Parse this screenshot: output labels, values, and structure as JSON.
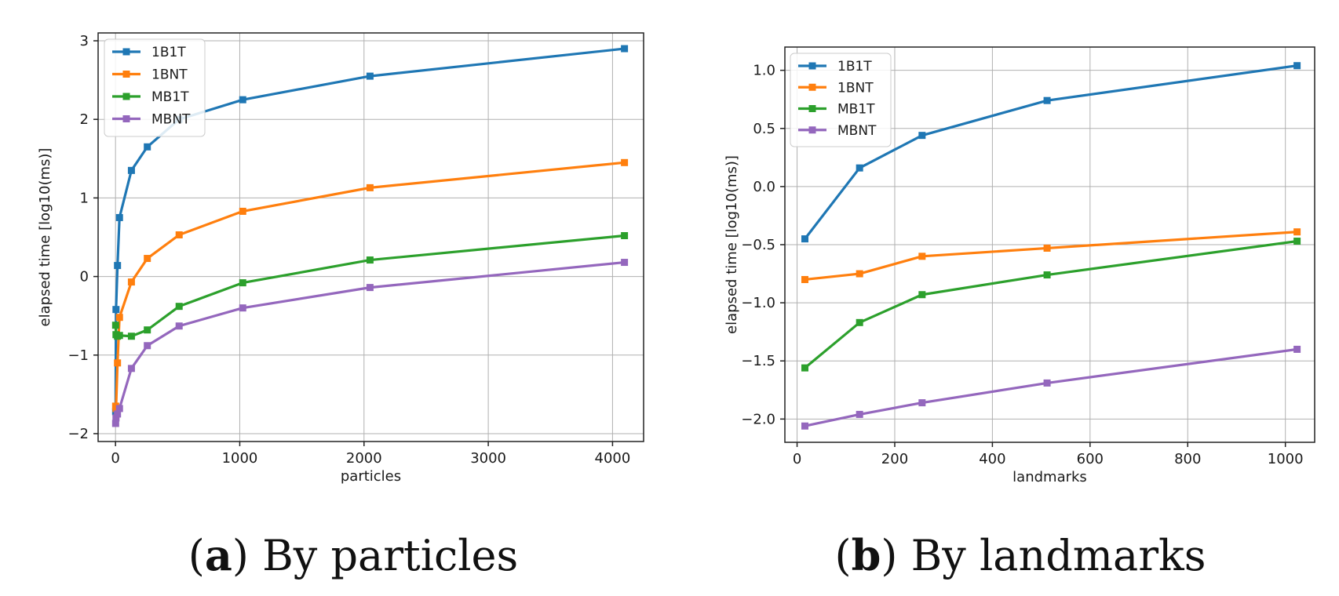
{
  "colors": {
    "1B1T": "#1f77b4",
    "1BNT": "#ff7f0e",
    "MB1T": "#2ca02c",
    "MBNT": "#9467bd"
  },
  "chart_data": [
    {
      "type": "line",
      "id": "a",
      "caption_letter": "a",
      "caption_text": " By particles",
      "xlabel": "particles",
      "ylabel": "elapsed time [log10(ms)]",
      "xlim": [
        -140,
        4250
      ],
      "ylim": [
        -2.1,
        3.1
      ],
      "xticks": [
        0,
        1000,
        2000,
        3000,
        4000
      ],
      "xtick_labels": [
        "0",
        "1000",
        "2000",
        "3000",
        "4000"
      ],
      "yticks": [
        -2,
        -1,
        0,
        1,
        2,
        3
      ],
      "ytick_labels": [
        "−2",
        "−1",
        "0",
        "1",
        "2",
        "3"
      ],
      "grid": true,
      "legend_position": "top-left",
      "series": [
        {
          "name": "1B1T",
          "x": [
            1,
            4,
            16,
            32,
            128,
            256,
            512,
            1024,
            2048,
            4096
          ],
          "y": [
            -1.72,
            -0.42,
            0.14,
            0.75,
            1.35,
            1.65,
            2.0,
            2.25,
            2.55,
            2.9
          ]
        },
        {
          "name": "1BNT",
          "x": [
            1,
            4,
            16,
            32,
            128,
            256,
            512,
            1024,
            2048,
            4096
          ],
          "y": [
            -1.65,
            -1.68,
            -1.1,
            -0.52,
            -0.07,
            0.23,
            0.53,
            0.83,
            1.13,
            1.45
          ]
        },
        {
          "name": "MB1T",
          "x": [
            1,
            4,
            16,
            32,
            128,
            256,
            512,
            1024,
            2048,
            4096
          ],
          "y": [
            -0.62,
            -0.74,
            -0.76,
            -0.75,
            -0.76,
            -0.68,
            -0.38,
            -0.08,
            0.21,
            0.52
          ]
        },
        {
          "name": "MBNT",
          "x": [
            1,
            4,
            16,
            32,
            128,
            256,
            512,
            1024,
            2048,
            4096
          ],
          "y": [
            -1.87,
            -1.8,
            -1.75,
            -1.68,
            -1.17,
            -0.88,
            -0.63,
            -0.4,
            -0.14,
            0.18
          ]
        }
      ]
    },
    {
      "type": "line",
      "id": "b",
      "caption_letter": "b",
      "caption_text": " By landmarks",
      "xlabel": "landmarks",
      "ylabel": "elapsed time [log10(ms)]",
      "xlim": [
        -25,
        1060
      ],
      "ylim": [
        -2.2,
        1.2
      ],
      "xticks": [
        0,
        200,
        400,
        600,
        800,
        1000
      ],
      "xtick_labels": [
        "0",
        "200",
        "400",
        "600",
        "800",
        "1000"
      ],
      "yticks": [
        -2.0,
        -1.5,
        -1.0,
        -0.5,
        0.0,
        0.5,
        1.0
      ],
      "ytick_labels": [
        "−2.0",
        "−1.5",
        "−1.0",
        "−0.5",
        "0.0",
        "0.5",
        "1.0"
      ],
      "grid": true,
      "legend_position": "top-left",
      "series": [
        {
          "name": "1B1T",
          "x": [
            16,
            128,
            256,
            512,
            1024
          ],
          "y": [
            -0.45,
            0.16,
            0.44,
            0.74,
            1.04
          ]
        },
        {
          "name": "1BNT",
          "x": [
            16,
            128,
            256,
            512,
            1024
          ],
          "y": [
            -0.8,
            -0.75,
            -0.6,
            -0.53,
            -0.39
          ]
        },
        {
          "name": "MB1T",
          "x": [
            16,
            128,
            256,
            512,
            1024
          ],
          "y": [
            -1.56,
            -1.17,
            -0.93,
            -0.76,
            -0.47
          ]
        },
        {
          "name": "MBNT",
          "x": [
            16,
            128,
            256,
            512,
            1024
          ],
          "y": [
            -2.06,
            -1.96,
            -1.86,
            -1.69,
            -1.4
          ]
        }
      ]
    }
  ]
}
